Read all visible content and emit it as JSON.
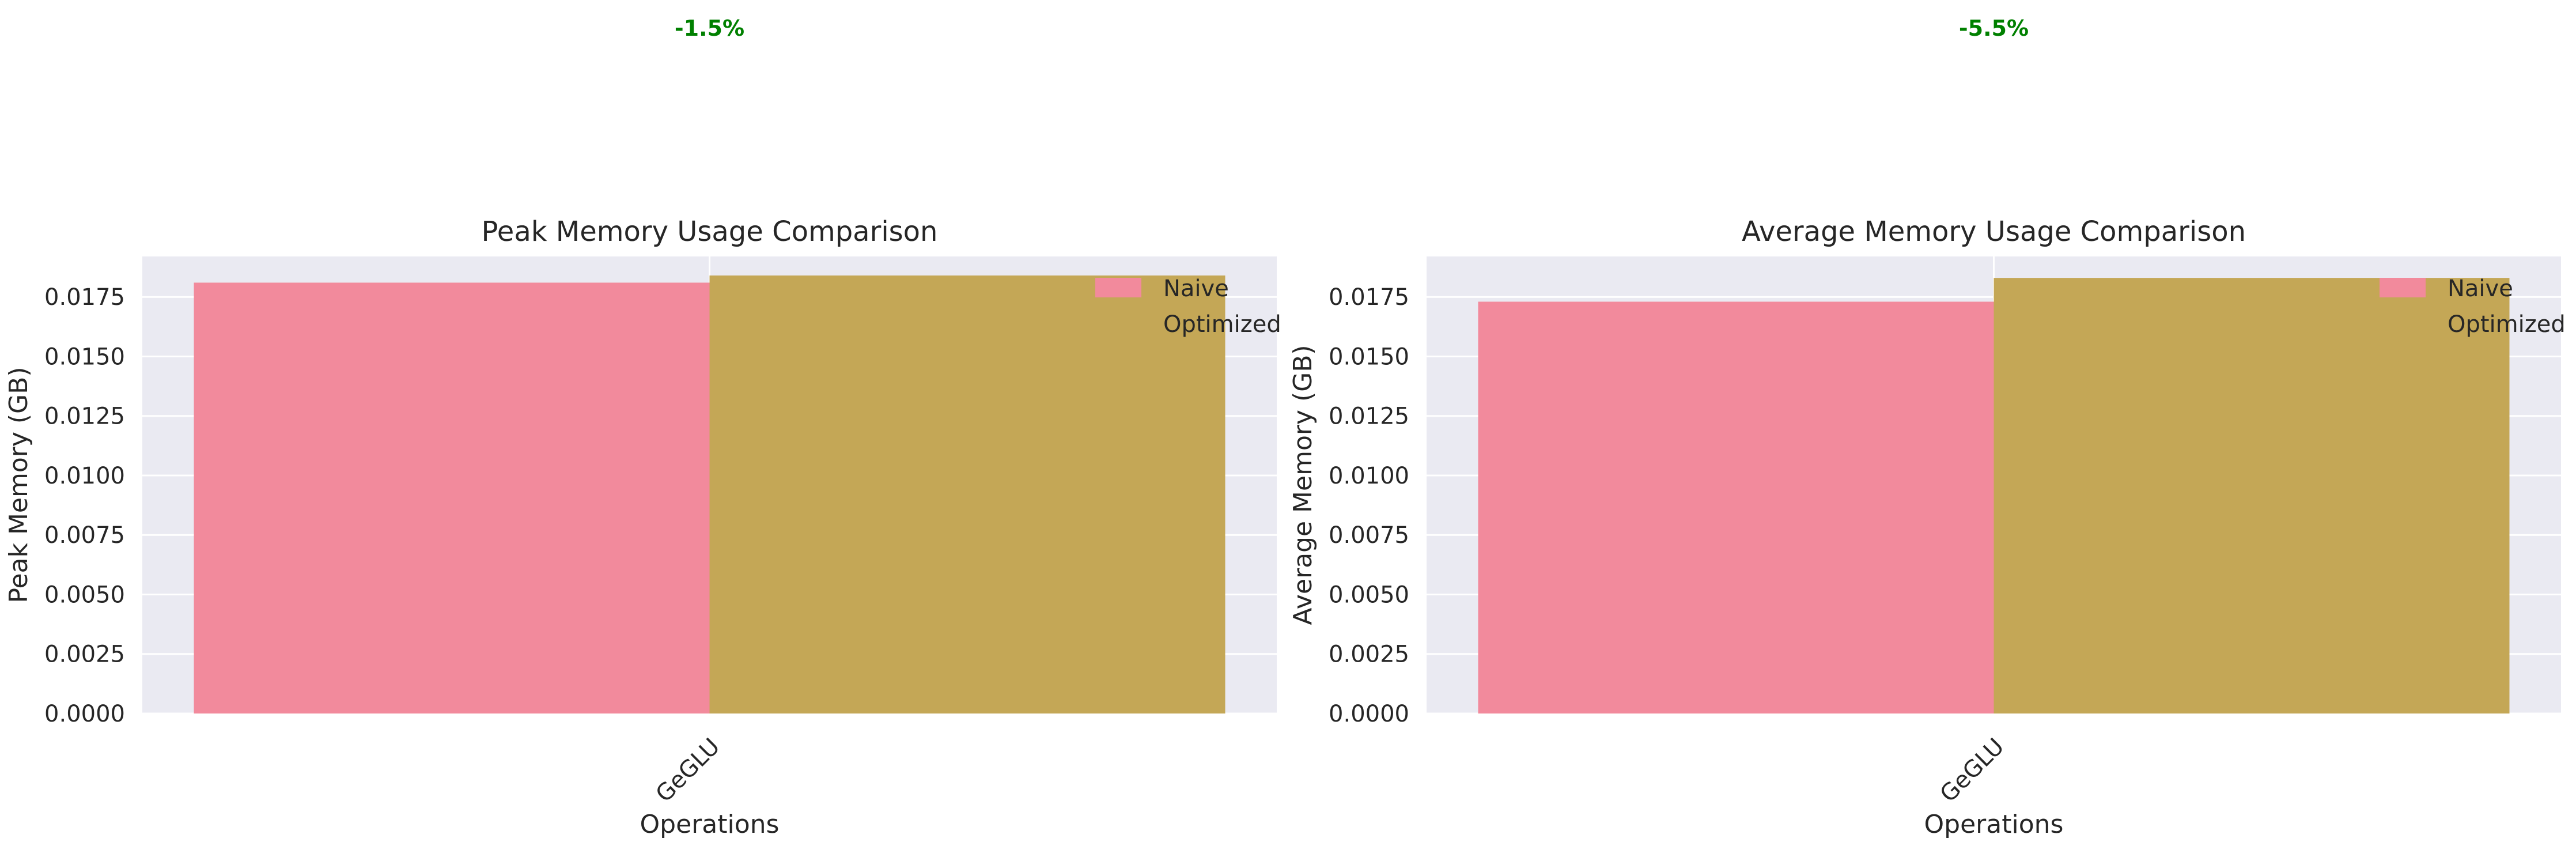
{
  "colors": {
    "naive": "#f28a9c",
    "optimized": "#c4a756",
    "axes_bg": "#eaeaf2",
    "grid": "#ffffff",
    "annotation": "#008000"
  },
  "chart_data": [
    {
      "type": "bar",
      "title": "Peak Memory Usage Comparison",
      "xlabel": "Operations",
      "ylabel": "Peak Memory (GB)",
      "categories": [
        "GeGLU"
      ],
      "series": [
        {
          "name": "Naive",
          "values": [
            0.0181
          ]
        },
        {
          "name": "Optimized",
          "values": [
            0.0184
          ]
        }
      ],
      "ylim": [
        0,
        0.0192
      ],
      "yticks": [
        "0.0000",
        "0.0025",
        "0.0050",
        "0.0075",
        "0.0100",
        "0.0125",
        "0.0150",
        "0.0175"
      ],
      "annotation": "-1.5%",
      "grid": true,
      "legend": "top-right"
    },
    {
      "type": "bar",
      "title": "Average Memory Usage Comparison",
      "xlabel": "Operations",
      "ylabel": "Average Memory (GB)",
      "categories": [
        "GeGLU"
      ],
      "series": [
        {
          "name": "Naive",
          "values": [
            0.0173
          ]
        },
        {
          "name": "Optimized",
          "values": [
            0.0183
          ]
        }
      ],
      "ylim": [
        0,
        0.0192
      ],
      "yticks": [
        "0.0000",
        "0.0025",
        "0.0050",
        "0.0075",
        "0.0100",
        "0.0125",
        "0.0150",
        "0.0175"
      ],
      "annotation": "-5.5%",
      "grid": true,
      "legend": "top-right"
    }
  ]
}
